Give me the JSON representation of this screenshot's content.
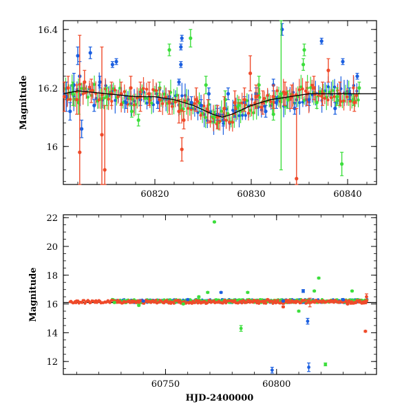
{
  "chart_data": [
    {
      "type": "scatter",
      "title": "",
      "xlabel": "",
      "ylabel": "Magnitude",
      "xlim": [
        60810.5,
        60843
      ],
      "ylim": [
        16.43,
        15.87
      ],
      "y_inverted": true,
      "grid": false,
      "x_ticks": [
        60820,
        60830,
        60840
      ],
      "y_ticks": [
        16,
        16.2,
        16.4
      ],
      "series": [
        {
          "color": "#1b5fe0",
          "points": [
            {
              "x": 60810.8,
              "y": 16.17,
              "e": 0.05
            },
            {
              "x": 60811.2,
              "y": 16.12,
              "e": 0.03
            },
            {
              "x": 60811.6,
              "y": 16.21,
              "e": 0.04
            },
            {
              "x": 60812.0,
              "y": 16.31,
              "e": 0.03
            },
            {
              "x": 60812.2,
              "y": 16.24,
              "e": 0.05
            },
            {
              "x": 60812.4,
              "y": 16.06,
              "e": 0.03
            },
            {
              "x": 60813.3,
              "y": 16.32,
              "e": 0.02
            },
            {
              "x": 60813.7,
              "y": 16.14,
              "e": 0.02
            },
            {
              "x": 60814.3,
              "y": 16.22,
              "e": 0.02
            },
            {
              "x": 60815.6,
              "y": 16.28,
              "e": 0.01
            },
            {
              "x": 60816.0,
              "y": 16.29,
              "e": 0.01
            },
            {
              "x": 60817.0,
              "y": 16.15,
              "e": 0.02
            },
            {
              "x": 60818.5,
              "y": 16.16,
              "e": 0.02
            },
            {
              "x": 60820.3,
              "y": 16.15,
              "e": 0.02
            },
            {
              "x": 60821.5,
              "y": 16.17,
              "e": 0.02
            },
            {
              "x": 60822.5,
              "y": 16.22,
              "e": 0.01
            },
            {
              "x": 60822.7,
              "y": 16.28,
              "e": 0.01
            },
            {
              "x": 60822.7,
              "y": 16.34,
              "e": 0.01
            },
            {
              "x": 60822.8,
              "y": 16.37,
              "e": 0.01
            },
            {
              "x": 60823.8,
              "y": 16.15,
              "e": 0.02
            },
            {
              "x": 60824.8,
              "y": 16.14,
              "e": 0.02
            },
            {
              "x": 60825.6,
              "y": 16.18,
              "e": 0.02
            },
            {
              "x": 60826.5,
              "y": 16.11,
              "e": 0.02
            },
            {
              "x": 60827.1,
              "y": 16.09,
              "e": 0.02
            },
            {
              "x": 60827.6,
              "y": 16.18,
              "e": 0.02
            },
            {
              "x": 60828.3,
              "y": 16.12,
              "e": 0.02
            },
            {
              "x": 60829.3,
              "y": 16.15,
              "e": 0.02
            },
            {
              "x": 60830.5,
              "y": 16.18,
              "e": 0.02
            },
            {
              "x": 60831.5,
              "y": 16.12,
              "e": 0.02
            },
            {
              "x": 60832.3,
              "y": 16.21,
              "e": 0.02
            },
            {
              "x": 60832.6,
              "y": 16.15,
              "e": 0.02
            },
            {
              "x": 60833.2,
              "y": 16.4,
              "e": 0.02
            },
            {
              "x": 60834.5,
              "y": 16.13,
              "e": 0.02
            },
            {
              "x": 60836.0,
              "y": 16.16,
              "e": 0.02
            },
            {
              "x": 60837.3,
              "y": 16.36,
              "e": 0.01
            },
            {
              "x": 60838.7,
              "y": 16.13,
              "e": 0.02
            },
            {
              "x": 60839.5,
              "y": 16.29,
              "e": 0.01
            },
            {
              "x": 60840.2,
              "y": 16.18,
              "e": 0.02
            },
            {
              "x": 60841.0,
              "y": 16.24,
              "e": 0.01
            }
          ]
        },
        {
          "color": "#3cde3c",
          "points": [
            {
              "x": 60811.5,
              "y": 16.18,
              "e": 0.04
            },
            {
              "x": 60812.1,
              "y": 16.15,
              "e": 0.04
            },
            {
              "x": 60815.0,
              "y": 16.17,
              "e": 0.03
            },
            {
              "x": 60817.6,
              "y": 16.12,
              "e": 0.02
            },
            {
              "x": 60818.3,
              "y": 16.09,
              "e": 0.02
            },
            {
              "x": 60820.5,
              "y": 16.2,
              "e": 0.02
            },
            {
              "x": 60821.5,
              "y": 16.33,
              "e": 0.02
            },
            {
              "x": 60822.6,
              "y": 16.14,
              "e": 0.02
            },
            {
              "x": 60823.7,
              "y": 16.37,
              "e": 0.03
            },
            {
              "x": 60825.3,
              "y": 16.21,
              "e": 0.03
            },
            {
              "x": 60826.2,
              "y": 16.1,
              "e": 0.02
            },
            {
              "x": 60827.3,
              "y": 16.16,
              "e": 0.03
            },
            {
              "x": 60828.7,
              "y": 16.14,
              "e": 0.02
            },
            {
              "x": 60830.8,
              "y": 16.21,
              "e": 0.03
            },
            {
              "x": 60832.3,
              "y": 16.11,
              "e": 0.02
            },
            {
              "x": 60833.1,
              "y": 16.18,
              "e": 0.26
            },
            {
              "x": 60833.8,
              "y": 16.16,
              "e": 0.03
            },
            {
              "x": 60835.4,
              "y": 16.28,
              "e": 0.02
            },
            {
              "x": 60835.5,
              "y": 16.33,
              "e": 0.02
            },
            {
              "x": 60836.8,
              "y": 16.15,
              "e": 0.02
            },
            {
              "x": 60838.9,
              "y": 16.17,
              "e": 0.03
            },
            {
              "x": 60839.4,
              "y": 15.94,
              "e": 0.04
            },
            {
              "x": 60840.6,
              "y": 16.16,
              "e": 0.02
            },
            {
              "x": 60841.2,
              "y": 16.2,
              "e": 0.02
            }
          ]
        },
        {
          "color": "#ef4a2a",
          "points": [
            {
              "x": 60810.6,
              "y": 16.17,
              "e": 0.05
            },
            {
              "x": 60811.0,
              "y": 16.2,
              "e": 0.04
            },
            {
              "x": 60811.9,
              "y": 16.16,
              "e": 0.05
            },
            {
              "x": 60812.2,
              "y": 15.98,
              "e": 0.4
            },
            {
              "x": 60812.7,
              "y": 16.22,
              "e": 0.04
            },
            {
              "x": 60813.4,
              "y": 16.19,
              "e": 0.04
            },
            {
              "x": 60814.5,
              "y": 16.04,
              "e": 0.3
            },
            {
              "x": 60814.8,
              "y": 15.92,
              "e": 0.22
            },
            {
              "x": 60815.5,
              "y": 16.18,
              "e": 0.04
            },
            {
              "x": 60816.5,
              "y": 16.18,
              "e": 0.04
            },
            {
              "x": 60817.5,
              "y": 16.2,
              "e": 0.04
            },
            {
              "x": 60818.5,
              "y": 16.17,
              "e": 0.05
            },
            {
              "x": 60819.4,
              "y": 16.18,
              "e": 0.04
            },
            {
              "x": 60820.5,
              "y": 16.16,
              "e": 0.04
            },
            {
              "x": 60821.5,
              "y": 16.15,
              "e": 0.04
            },
            {
              "x": 60822.5,
              "y": 16.12,
              "e": 0.04
            },
            {
              "x": 60822.8,
              "y": 15.99,
              "e": 0.04
            },
            {
              "x": 60823.0,
              "y": 16.09,
              "e": 0.03
            },
            {
              "x": 60824.3,
              "y": 16.16,
              "e": 0.04
            },
            {
              "x": 60825.5,
              "y": 16.12,
              "e": 0.04
            },
            {
              "x": 60826.5,
              "y": 16.1,
              "e": 0.04
            },
            {
              "x": 60827.2,
              "y": 16.13,
              "e": 0.04
            },
            {
              "x": 60828.3,
              "y": 16.15,
              "e": 0.04
            },
            {
              "x": 60829.3,
              "y": 16.16,
              "e": 0.04
            },
            {
              "x": 60829.9,
              "y": 16.25,
              "e": 0.06
            },
            {
              "x": 60830.5,
              "y": 16.17,
              "e": 0.04
            },
            {
              "x": 60831.2,
              "y": 16.15,
              "e": 0.04
            },
            {
              "x": 60832.3,
              "y": 16.17,
              "e": 0.04
            },
            {
              "x": 60833.5,
              "y": 16.18,
              "e": 0.04
            },
            {
              "x": 60834.2,
              "y": 16.17,
              "e": 0.04
            },
            {
              "x": 60834.7,
              "y": 15.89,
              "e": 0.24
            },
            {
              "x": 60835.8,
              "y": 16.18,
              "e": 0.04
            },
            {
              "x": 60836.5,
              "y": 16.2,
              "e": 0.04
            },
            {
              "x": 60837.4,
              "y": 16.18,
              "e": 0.04
            },
            {
              "x": 60838.0,
              "y": 16.26,
              "e": 0.04
            },
            {
              "x": 60839.2,
              "y": 16.18,
              "e": 0.04
            },
            {
              "x": 60840.7,
              "y": 16.15,
              "e": 0.03
            }
          ]
        }
      ],
      "model_curve": {
        "color": "#000000",
        "x": [
          60810.5,
          60812,
          60815,
          60818,
          60820,
          60822,
          60824,
          60826,
          60827,
          60828,
          60830,
          60832,
          60834,
          60836,
          60838,
          60840,
          60843
        ],
        "y": [
          16.18,
          16.19,
          16.18,
          16.17,
          16.17,
          16.16,
          16.14,
          16.11,
          16.1,
          16.11,
          16.14,
          16.16,
          16.17,
          16.18,
          16.18,
          16.18,
          16.18
        ]
      }
    },
    {
      "type": "scatter",
      "title": "",
      "xlabel": "HJD-2400000",
      "ylabel": "Magnitude",
      "xlim": [
        60704,
        60845
      ],
      "ylim": [
        22.2,
        11.1
      ],
      "y_inverted": true,
      "grid": false,
      "x_ticks": [
        60750,
        60800
      ],
      "y_ticks": [
        12,
        14,
        16,
        18,
        20,
        22
      ],
      "reference_line": {
        "y": 16.1,
        "color": "#000000"
      },
      "series": [
        {
          "color": "#1b5fe0",
          "points": [
            {
              "x": 60740,
              "y": 16.2,
              "e": 0.05
            },
            {
              "x": 60760,
              "y": 16.3,
              "e": 0.05
            },
            {
              "x": 60775,
              "y": 16.8,
              "e": 0.05
            },
            {
              "x": 60798,
              "y": 11.4,
              "e": 0.2
            },
            {
              "x": 60803,
              "y": 16.2,
              "e": 0.05
            },
            {
              "x": 60812,
              "y": 16.9,
              "e": 0.1
            },
            {
              "x": 60814,
              "y": 14.8,
              "e": 0.2
            },
            {
              "x": 60814.5,
              "y": 11.6,
              "e": 0.3
            },
            {
              "x": 60830,
              "y": 16.3,
              "e": 0.05
            }
          ]
        },
        {
          "color": "#3cde3c",
          "points": [
            {
              "x": 60727,
              "y": 16.1,
              "e": 0.05
            },
            {
              "x": 60738,
              "y": 15.9,
              "e": 0.05
            },
            {
              "x": 60758,
              "y": 16.0,
              "e": 0.05
            },
            {
              "x": 60765,
              "y": 16.5,
              "e": 0.05
            },
            {
              "x": 60769,
              "y": 16.8,
              "e": 0.05
            },
            {
              "x": 60772,
              "y": 21.7,
              "e": 0.05
            },
            {
              "x": 60784,
              "y": 14.3,
              "e": 0.2
            },
            {
              "x": 60787,
              "y": 16.8,
              "e": 0.05
            },
            {
              "x": 60810,
              "y": 15.5,
              "e": 0.05
            },
            {
              "x": 60817,
              "y": 16.9,
              "e": 0.05
            },
            {
              "x": 60819,
              "y": 17.8,
              "e": 0.05
            },
            {
              "x": 60822,
              "y": 11.8,
              "e": 0.1
            },
            {
              "x": 60834,
              "y": 16.9,
              "e": 0.05
            }
          ]
        },
        {
          "color": "#ef4a2a",
          "points": [
            {
              "x": 60710,
              "y": 16.2,
              "e": 0.05
            },
            {
              "x": 60720,
              "y": 16.2,
              "e": 0.05
            },
            {
              "x": 60735,
              "y": 16.2,
              "e": 0.05
            },
            {
              "x": 60750,
              "y": 16.2,
              "e": 0.05
            },
            {
              "x": 60765,
              "y": 16.2,
              "e": 0.05
            },
            {
              "x": 60780,
              "y": 16.2,
              "e": 0.05
            },
            {
              "x": 60796,
              "y": 16.3,
              "e": 0.05
            },
            {
              "x": 60803,
              "y": 15.8,
              "e": 0.05
            },
            {
              "x": 60815,
              "y": 16.1,
              "e": 0.3
            },
            {
              "x": 60825,
              "y": 16.2,
              "e": 0.05
            },
            {
              "x": 60832,
              "y": 16.0,
              "e": 0.05
            },
            {
              "x": 60840,
              "y": 14.1,
              "e": 0.05
            },
            {
              "x": 60840.5,
              "y": 16.5,
              "e": 0.2
            }
          ]
        }
      ],
      "dense_bands": [
        {
          "color": "#1b5fe0",
          "x_start": 60726,
          "x_end": 60841,
          "y_center": 16.2,
          "y_spread": 0.12
        },
        {
          "color": "#3cde3c",
          "x_start": 60726,
          "x_end": 60841,
          "y_center": 16.2,
          "y_spread": 0.12
        },
        {
          "color": "#ef4a2a",
          "x_start": 60707,
          "x_end": 60841,
          "y_center": 16.15,
          "y_spread": 0.12
        }
      ]
    }
  ]
}
